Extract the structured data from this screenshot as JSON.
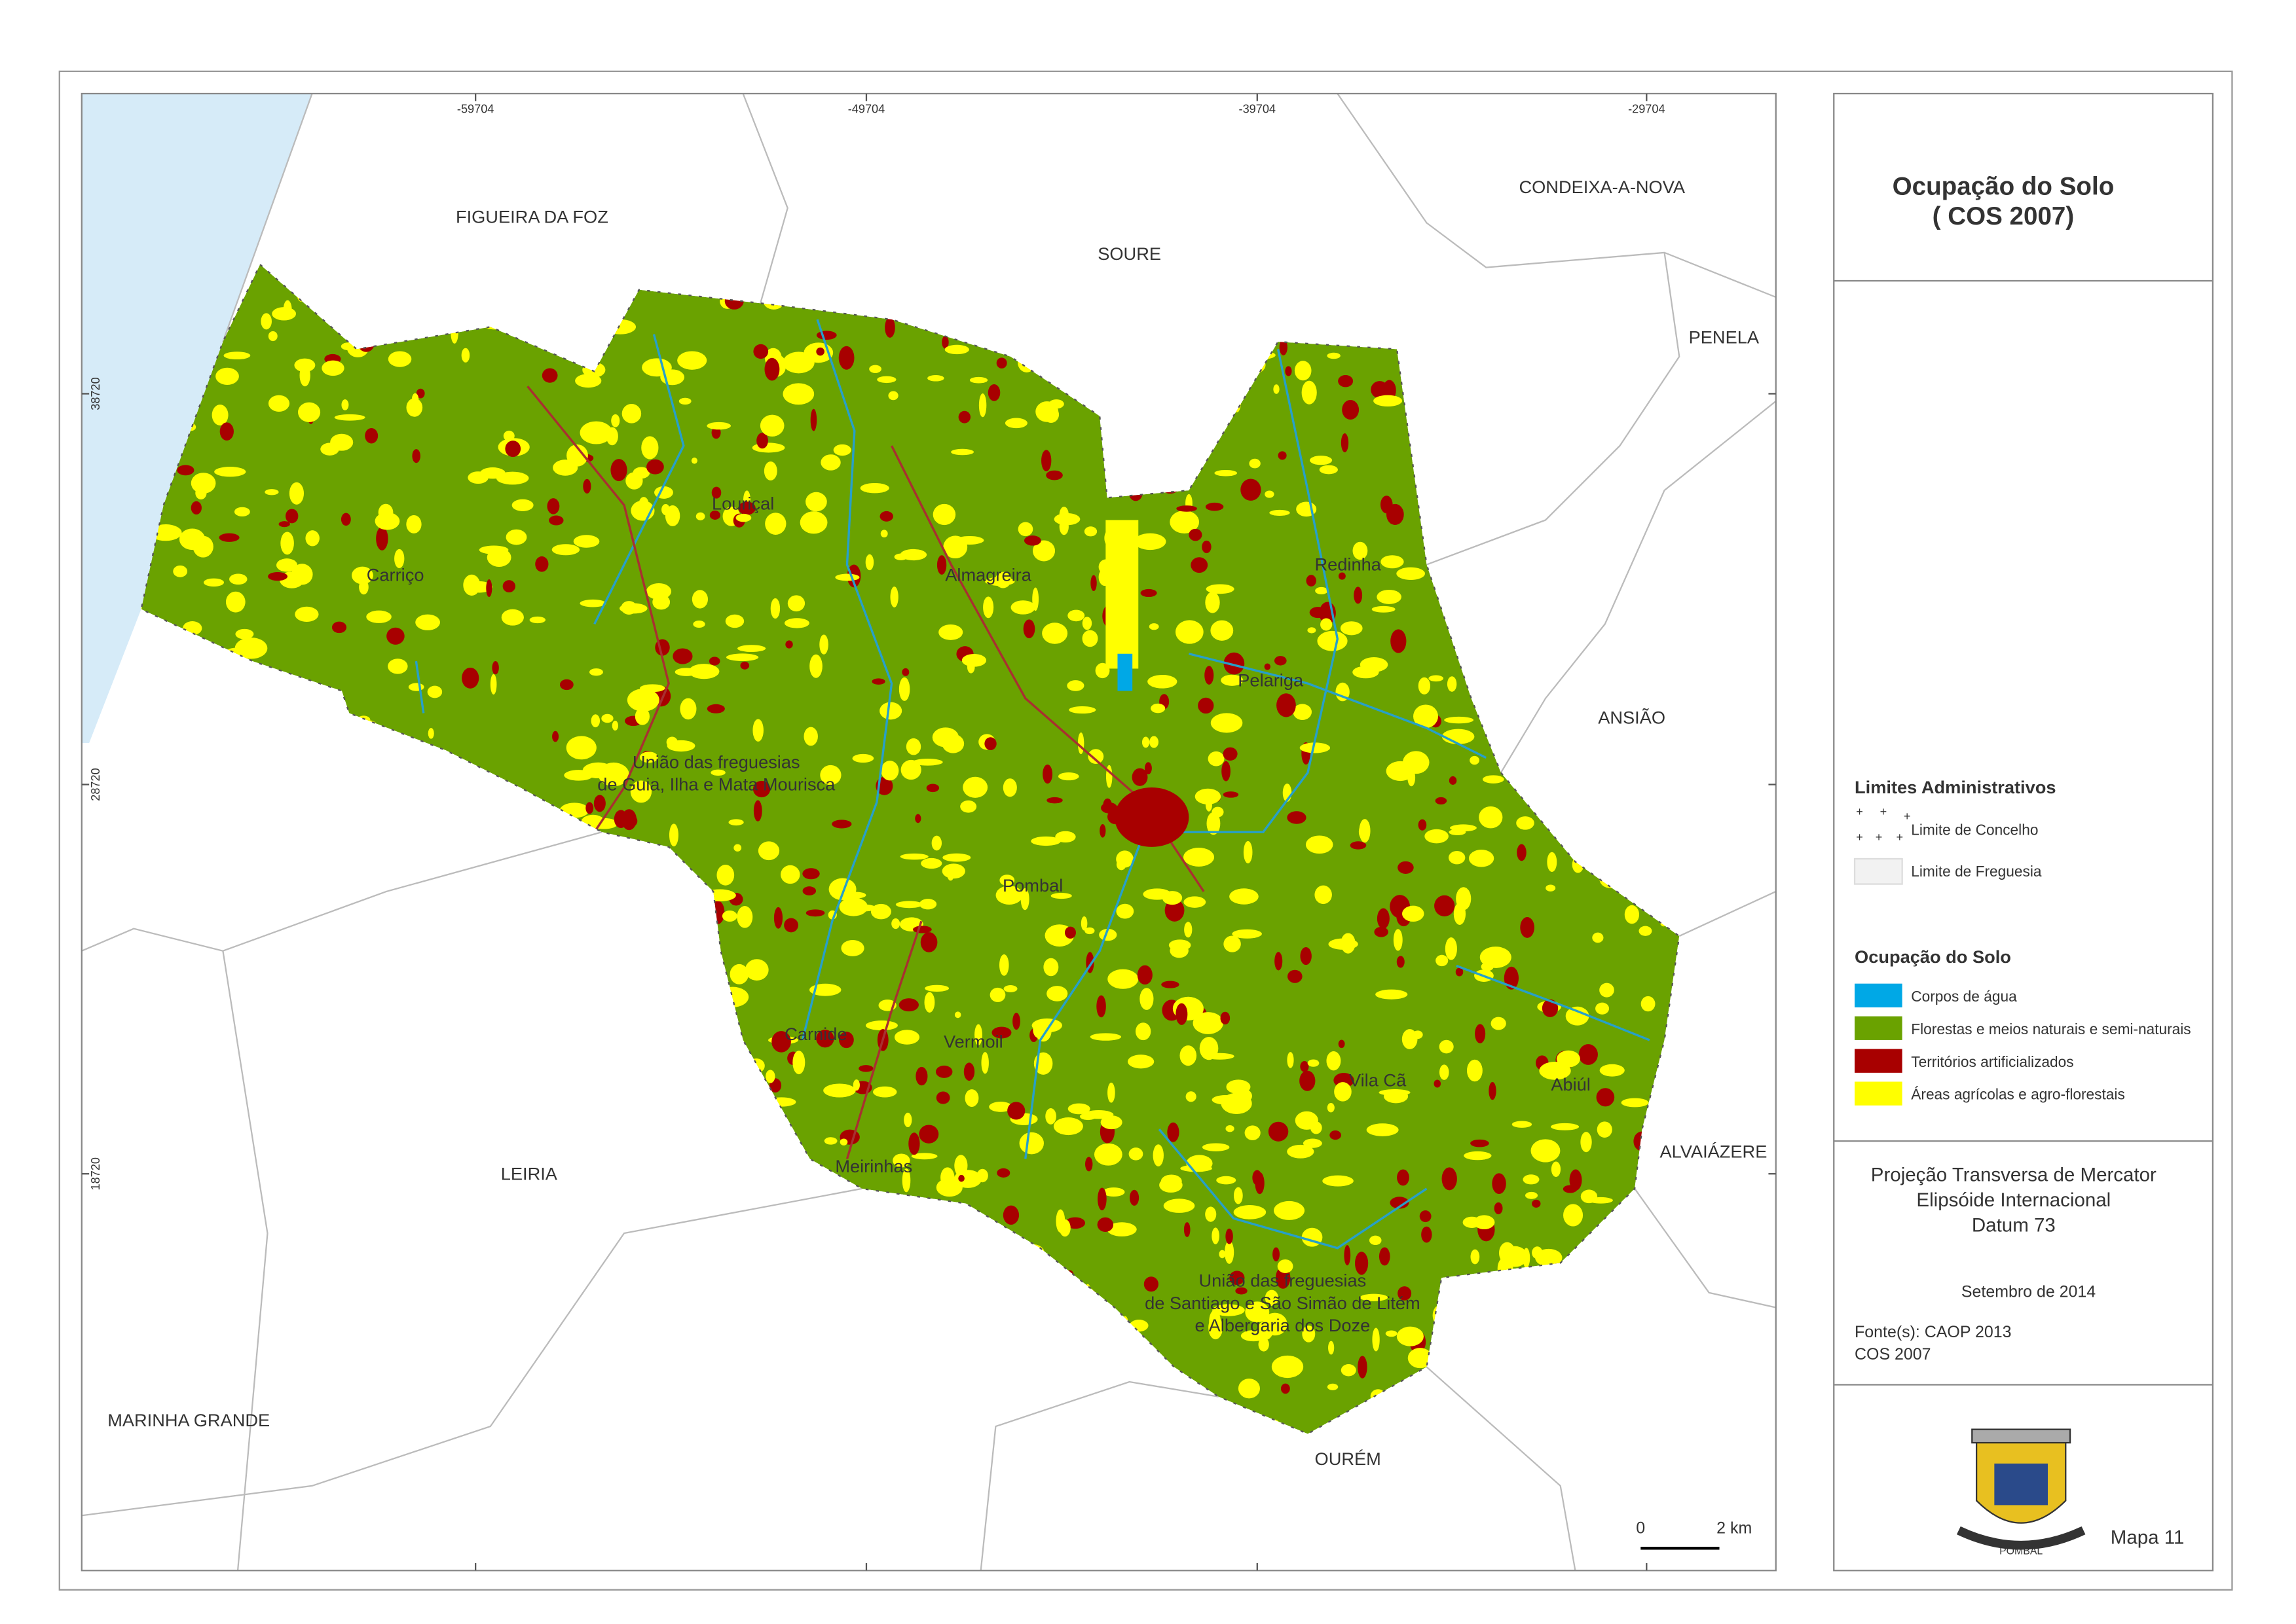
{
  "map": {
    "title": [
      "Ocupação do Solo",
      "( COS 2007)"
    ],
    "grid_x_labels": [
      "-59704",
      "-49704",
      "-39704",
      "-29704"
    ],
    "grid_y_labels": [
      "38720",
      "28720",
      "18720"
    ],
    "neighbours": [
      "FIGUEIRA DA FOZ",
      "SOURE",
      "CONDEIXA-A-NOVA",
      "PENELA",
      "ANSIÃO",
      "ALVAIÁZERE",
      "OURÉM",
      "LEIRIA",
      "MARINHA GRANDE"
    ],
    "parishes": [
      [
        "Louriçal"
      ],
      [
        "Carriço"
      ],
      [
        "Almagreira"
      ],
      [
        "Redinha"
      ],
      [
        "Pelariga"
      ],
      [
        "União das freguesias",
        "de Guia, Ilha e Mata Mourisca"
      ],
      [
        "Pombal"
      ],
      [
        "Carnide"
      ],
      [
        "Vermoil"
      ],
      [
        "Meirinhas"
      ],
      [
        "Vila Cã"
      ],
      [
        "Abiúl"
      ],
      [
        "União das freguesias",
        "de Santiago e São Simão de Litém",
        "e Albergaria dos Doze"
      ]
    ],
    "legend_admin": {
      "title": "Limites Administrativos",
      "items": [
        "Limite de Concelho",
        "Limite de Freguesia"
      ]
    },
    "legend_landuse": {
      "title": "Ocupação do Solo",
      "items": [
        {
          "label": "Corpos de água",
          "color": "#00a8e6"
        },
        {
          "label": "Florestas e meios naturais e semi-naturais",
          "color": "#6aa200"
        },
        {
          "label": "Territórios artificializados",
          "color": "#a80000"
        },
        {
          "label": "Áreas agrícolas e agro-florestais",
          "color": "#ffff00"
        }
      ]
    },
    "projection": [
      "Projeção Transversa de Mercator",
      "Elipsóide Internacional",
      "Datum 73"
    ],
    "date": "Setembro de 2014",
    "sources": [
      "Fonte(s): CAOP 2013",
      "COS 2007"
    ],
    "scale_labels": [
      "0",
      "2 km"
    ],
    "logo_text": "POMBAL",
    "map_number": "Mapa 11"
  }
}
